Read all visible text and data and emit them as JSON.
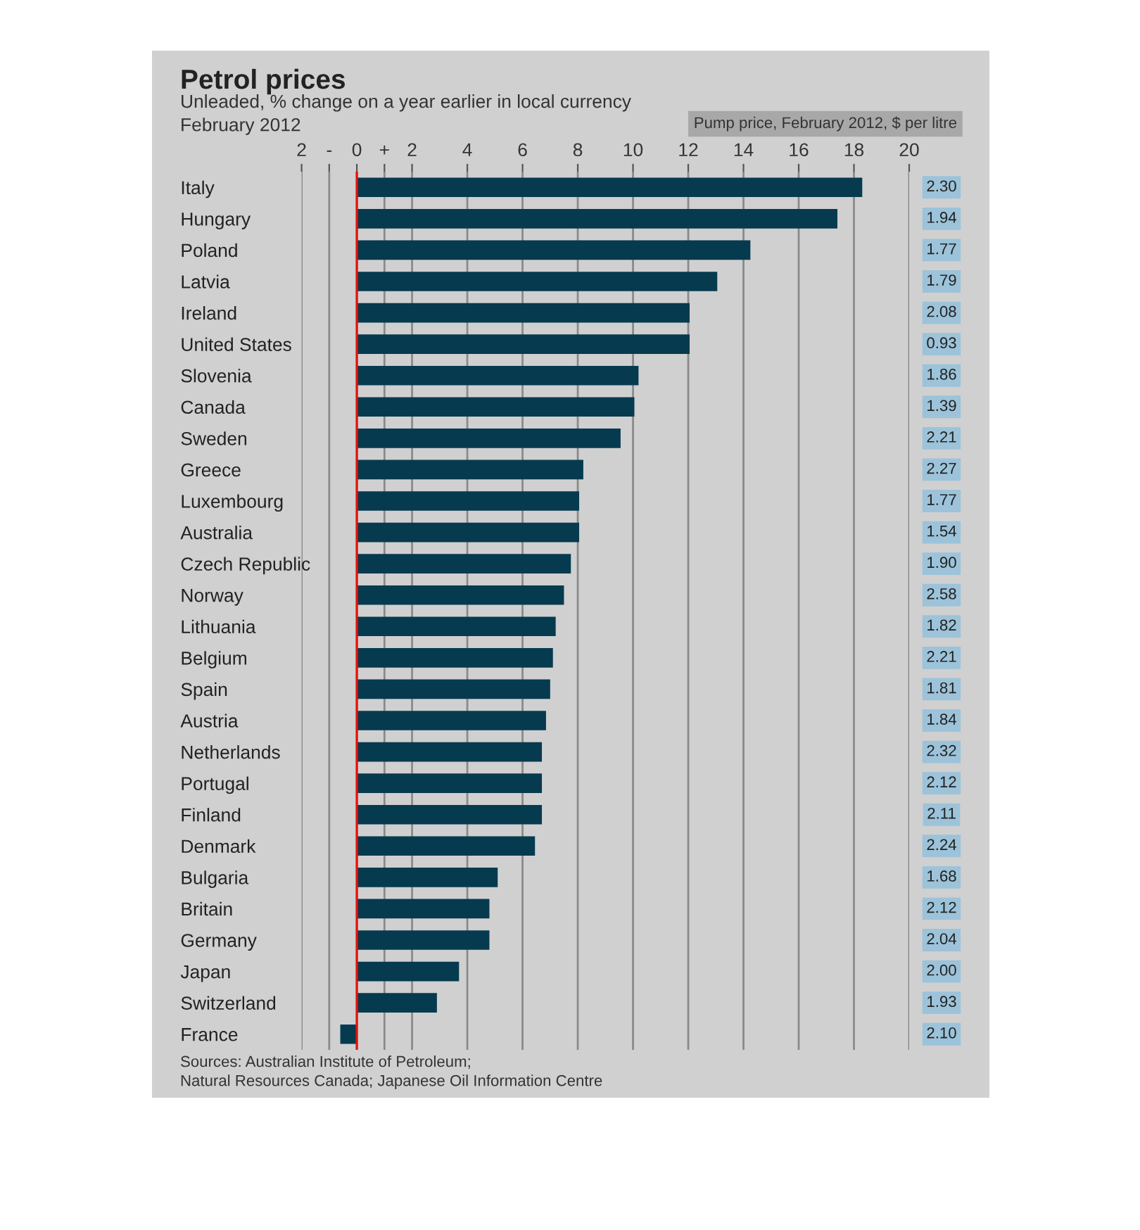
{
  "chart_data": [
    {
      "type": "bar",
      "orientation": "horizontal",
      "title": "Petrol prices",
      "subtitle": "Unleaded, % change on a year earlier in local currency\nFebruary 2012",
      "categories": [
        "Italy",
        "Hungary",
        "Poland",
        "Latvia",
        "Ireland",
        "United States",
        "Slovenia",
        "Canada",
        "Sweden",
        "Greece",
        "Luxembourg",
        "Australia",
        "Czech Republic",
        "Norway",
        "Lithuania",
        "Belgium",
        "Spain",
        "Austria",
        "Netherlands",
        "Portugal",
        "Finland",
        "Denmark",
        "Bulgaria",
        "Britain",
        "Germany",
        "Japan",
        "Switzerland",
        "France"
      ],
      "values": [
        18.3,
        17.4,
        14.25,
        13.05,
        12.05,
        12.05,
        10.2,
        10.05,
        9.55,
        8.2,
        8.05,
        8.05,
        7.75,
        7.5,
        7.2,
        7.1,
        7.0,
        6.85,
        6.7,
        6.7,
        6.7,
        6.45,
        5.1,
        4.8,
        4.8,
        3.7,
        2.9,
        -0.6
      ],
      "color": "#063a4f",
      "xlim": [
        -2,
        20
      ],
      "xticks": [
        {
          "value": -2,
          "label": "2"
        },
        {
          "value": -1,
          "label": "-"
        },
        0,
        {
          "value": 1,
          "label": "+"
        },
        2,
        4,
        6,
        8,
        10,
        12,
        14,
        16,
        18,
        20
      ],
      "grid": "x",
      "ref_lines": [
        {
          "axis": "x",
          "value": 0,
          "color": "#e3120b"
        }
      ],
      "annotations": [
        "Sources: Australian Institute of Petroleum;\nNatural Resources Canada; Japanese Oil Information Centre"
      ]
    },
    {
      "type": "other",
      "title": "Pump price, February 2012, $ per litre",
      "categories": [
        null,
        null,
        null,
        null,
        null,
        null,
        null,
        null,
        null,
        null,
        null,
        null,
        null,
        null,
        null,
        null,
        null,
        null,
        null,
        null,
        null,
        null,
        null,
        null,
        null,
        null,
        null,
        null
      ],
      "values": [
        2.3,
        1.94,
        1.77,
        1.79,
        2.08,
        0.93,
        1.86,
        1.39,
        2.21,
        2.27,
        1.77,
        1.54,
        1.9,
        2.58,
        1.82,
        2.21,
        1.81,
        1.84,
        2.32,
        2.12,
        2.11,
        2.24,
        1.68,
        2.12,
        2.04,
        2.0,
        1.93,
        2.1
      ],
      "value_labels": [
        "2.30",
        "1.94",
        "1.77",
        "1.79",
        "2.08",
        "0.93",
        "1.86",
        "1.39",
        "2.21",
        "2.27",
        "1.77",
        "1.54",
        "1.90",
        "2.58",
        "1.82",
        "2.21",
        "1.81",
        "1.84",
        "2.32",
        "2.12",
        "2.11",
        "2.24",
        "1.68",
        "2.12",
        "2.04",
        "2.00",
        "1.93",
        "2.10"
      ],
      "color": "#9cc3d9"
    }
  ]
}
